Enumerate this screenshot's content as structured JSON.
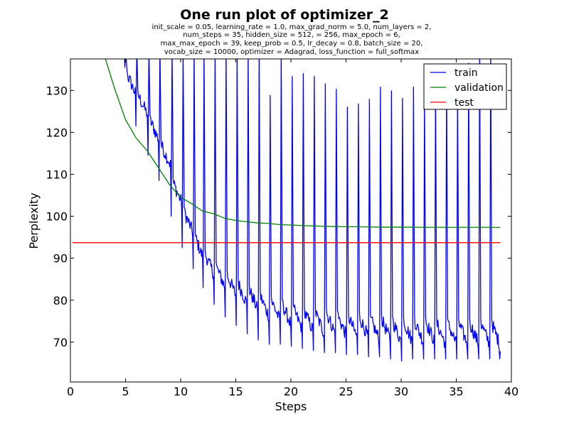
{
  "chart_data": {
    "type": "line",
    "title": "One run plot of optimizer_2",
    "subtitle_lines": [
      "init_scale = 0.05, learning_rate = 1.0, max_grad_norm = 5.0, num_layers = 2,",
      "num_steps = 35, hidden_size = 512,   = 256, max_epoch = 6,",
      "max_max_epoch = 39, keep_prob = 0.5, lr_decay = 0.8, batch_size = 20,",
      "vocab_size = 10000, optimizer = Adagrad, loss_function = full_softmax"
    ],
    "xlabel": "Steps",
    "ylabel": "Perplexity",
    "xlim": [
      0,
      40
    ],
    "ylim": [
      60.5,
      137.5
    ],
    "xticks": [
      0,
      5,
      10,
      15,
      20,
      25,
      30,
      35,
      40
    ],
    "yticks": [
      70,
      80,
      90,
      100,
      110,
      120,
      130
    ],
    "grid": false,
    "legend_position": "top-right",
    "series": [
      {
        "name": "train",
        "color": "#0000ff",
        "epoch_starts": [
          4.0,
          5.0,
          6.0,
          7.1,
          8.1,
          9.2,
          10.2,
          11.2,
          12.1,
          13.1,
          14.1,
          15.1,
          16.1,
          17.1,
          18.1,
          19.1,
          20.1,
          21.1,
          22.1,
          23.1,
          24.1,
          25.1,
          26.1,
          27.1,
          28.1,
          29.1,
          30.1,
          31.1,
          32.1,
          33.1,
          34.1,
          35.1,
          36.1,
          37.1,
          38.1
        ],
        "epoch_peaks": [
          140,
          140,
          140,
          140,
          140,
          140,
          140,
          140,
          140,
          140,
          140,
          140,
          140,
          140,
          128.8,
          140,
          133.3,
          134.0,
          133.3,
          131.6,
          130.3,
          126.0,
          126.8,
          127.9,
          130.8,
          129.9,
          128.1,
          130.8,
          129.2,
          131.7,
          133.0,
          131.0,
          136.5,
          140,
          140
        ],
        "epoch_dips": [
          135.5,
          121.5,
          114.5,
          108.5,
          100.0,
          92.5,
          87.5,
          83.0,
          79.0,
          76.0,
          74.0,
          72.0,
          70.5,
          69.5,
          69.5,
          69.0,
          68.5,
          68.0,
          67.5,
          67.5,
          67.0,
          67.0,
          66.5,
          66.5,
          66.0,
          65.5,
          66.0,
          66.0,
          66.0,
          66.0,
          66.0,
          66.0,
          66.0,
          66.0,
          66.0
        ],
        "epoch_means": [
          138,
          129,
          124,
          118,
          112,
          103,
          96,
          90,
          86,
          83,
          81,
          79,
          77.5,
          76,
          75,
          74,
          73,
          72.5,
          72,
          72,
          71.5,
          71,
          71,
          70.5,
          70.5,
          70,
          70,
          70,
          70,
          69.5,
          69.5,
          69.5,
          69.5,
          69.5,
          69.5
        ],
        "x_end": 39.0,
        "y_end": 67.8
      },
      {
        "name": "validation",
        "color": "#008000",
        "x": [
          3,
          4,
          5,
          6,
          7,
          8,
          9,
          10,
          11,
          12,
          13,
          14,
          15,
          16,
          17,
          18,
          19,
          20,
          21,
          22,
          23,
          24,
          25,
          26,
          27,
          28,
          29,
          30,
          31,
          32,
          33,
          34,
          35,
          36,
          37,
          38,
          39
        ],
        "y": [
          139,
          130.5,
          123,
          118.5,
          115.5,
          111.5,
          107.5,
          104.5,
          103.0,
          101.2,
          100.6,
          99.5,
          99.0,
          98.7,
          98.4,
          98.3,
          98.0,
          97.9,
          97.8,
          97.7,
          97.6,
          97.55,
          97.5,
          97.5,
          97.45,
          97.4,
          97.4,
          97.4,
          97.4,
          97.35,
          97.35,
          97.35,
          97.35,
          97.35,
          97.35,
          97.35,
          97.35
        ]
      },
      {
        "name": "test",
        "color": "#ff0000",
        "x": [
          0.2,
          39.0
        ],
        "y": [
          93.7,
          93.7
        ]
      }
    ]
  }
}
